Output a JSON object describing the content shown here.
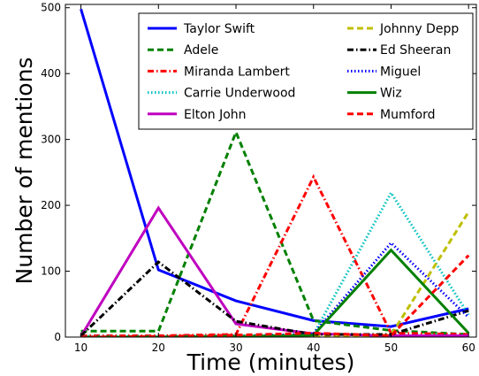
{
  "chart_data": {
    "type": "line",
    "title": "",
    "xlabel": "Time (minutes)",
    "ylabel": "Number of mentions",
    "x": [
      10,
      20,
      30,
      40,
      50,
      60
    ],
    "xlim": [
      8,
      61
    ],
    "ylim": [
      0,
      505
    ],
    "x_ticks": [
      10,
      20,
      30,
      40,
      50,
      60
    ],
    "y_ticks": [
      0,
      100,
      200,
      300,
      400,
      500
    ],
    "grid": false,
    "legend_position": "top-right",
    "series": [
      {
        "name": "Taylor Swift",
        "color": "#0000ff",
        "style": "solid",
        "values": [
          498,
          102,
          55,
          25,
          16,
          43
        ]
      },
      {
        "name": "Adele",
        "color": "#008000",
        "style": "dashed",
        "values": [
          9,
          9,
          311,
          25,
          10,
          4
        ]
      },
      {
        "name": "Miranda Lambert",
        "color": "#ff0000",
        "style": "dashdot",
        "values": [
          2,
          2,
          4,
          243,
          6,
          4
        ]
      },
      {
        "name": "Carrie Underwood",
        "color": "#00bfbf",
        "style": "dotted",
        "values": [
          1,
          1,
          2,
          4,
          219,
          34
        ]
      },
      {
        "name": "Elton John",
        "color": "#bf00bf",
        "style": "solid",
        "values": [
          1,
          196,
          20,
          5,
          2,
          2
        ]
      },
      {
        "name": "Johnny Depp",
        "color": "#bfbf00",
        "style": "dashed",
        "values": [
          0,
          0,
          1,
          1,
          3,
          190
        ]
      },
      {
        "name": "Ed Sheeran",
        "color": "#000000",
        "style": "dashdot",
        "values": [
          2,
          114,
          24,
          4,
          4,
          40
        ]
      },
      {
        "name": "Miguel",
        "color": "#0000ff",
        "style": "dotted",
        "values": [
          0,
          0,
          1,
          5,
          143,
          30
        ]
      },
      {
        "name": "Wiz",
        "color": "#008000",
        "style": "solid",
        "values": [
          0,
          0,
          1,
          3,
          132,
          6
        ]
      },
      {
        "name": "Mumford",
        "color": "#ff0000",
        "style": "dashed",
        "values": [
          0,
          1,
          3,
          6,
          2,
          124
        ]
      }
    ]
  }
}
